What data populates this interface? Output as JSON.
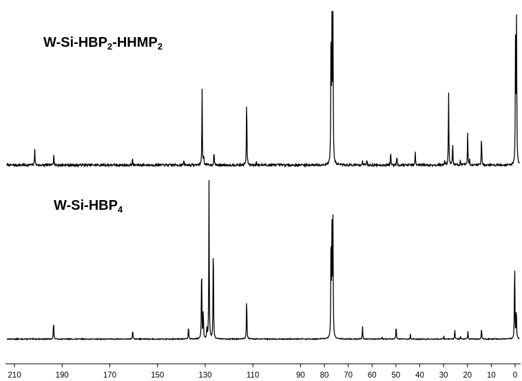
{
  "chart_data": {
    "type": "line",
    "xaxis": {
      "reversed": true,
      "xlim": [
        213,
        -1.5
      ],
      "ticks": [
        "210",
        "190",
        "170",
        "150",
        "130",
        "110",
        "90",
        "80",
        "70",
        "60",
        "50",
        "40",
        "30",
        "20",
        "10",
        "0"
      ],
      "tick_values": [
        210,
        190,
        170,
        150,
        130,
        110,
        90,
        80,
        70,
        60,
        50,
        40,
        30,
        20,
        10,
        0
      ]
    },
    "grid": false,
    "legend": "none",
    "line_color": "#000000",
    "series": [
      {
        "name": "W-Si-HBP",
        "name_sub": "2",
        "name_mid": "-HHMP",
        "name_sub2": "2",
        "noise": 0.03,
        "peaks": [
          [
            201.5,
            0.23
          ],
          [
            193.5,
            0.16
          ],
          [
            160.5,
            0.08
          ],
          [
            139.0,
            0.06
          ],
          [
            131.3,
            1.0
          ],
          [
            130.6,
            0.12
          ],
          [
            126.3,
            0.19
          ],
          [
            112.6,
            0.93
          ],
          [
            108.5,
            0.05
          ],
          [
            77.2,
            2.0
          ],
          [
            76.8,
            2.0
          ],
          [
            76.4,
            2.0
          ],
          [
            64.0,
            0.06
          ],
          [
            62.2,
            0.08
          ],
          [
            52.2,
            0.17
          ],
          [
            49.6,
            0.14
          ],
          [
            41.9,
            0.17
          ],
          [
            29.6,
            0.07
          ],
          [
            27.9,
            1.0
          ],
          [
            26.2,
            0.32
          ],
          [
            23.0,
            0.06
          ],
          [
            19.9,
            0.44
          ],
          [
            19.1,
            0.07
          ],
          [
            14.1,
            0.4
          ],
          [
            -0.2,
            2.0
          ],
          [
            -0.6,
            1.87
          ]
        ]
      },
      {
        "name": "W-Si-HBP",
        "name_sub": "4",
        "noise": 0.006,
        "peaks": [
          [
            193.6,
            0.12
          ],
          [
            160.4,
            0.06
          ],
          [
            137.0,
            0.09
          ],
          [
            131.5,
            0.52
          ],
          [
            130.8,
            0.19
          ],
          [
            129.3,
            0.07
          ],
          [
            128.4,
            1.0
          ],
          [
            126.6,
            0.68
          ],
          [
            112.6,
            0.28
          ],
          [
            77.2,
            0.72
          ],
          [
            76.8,
            0.72
          ],
          [
            76.4,
            0.72
          ],
          [
            64.0,
            0.08
          ],
          [
            55.8,
            0.015
          ],
          [
            49.9,
            0.09
          ],
          [
            43.9,
            0.03
          ],
          [
            29.9,
            0.02
          ],
          [
            25.3,
            0.06
          ],
          [
            22.9,
            0.02
          ],
          [
            19.8,
            0.05
          ],
          [
            14.1,
            0.07
          ],
          [
            0.2,
            0.53
          ],
          [
            -0.5,
            0.21
          ]
        ]
      }
    ]
  }
}
